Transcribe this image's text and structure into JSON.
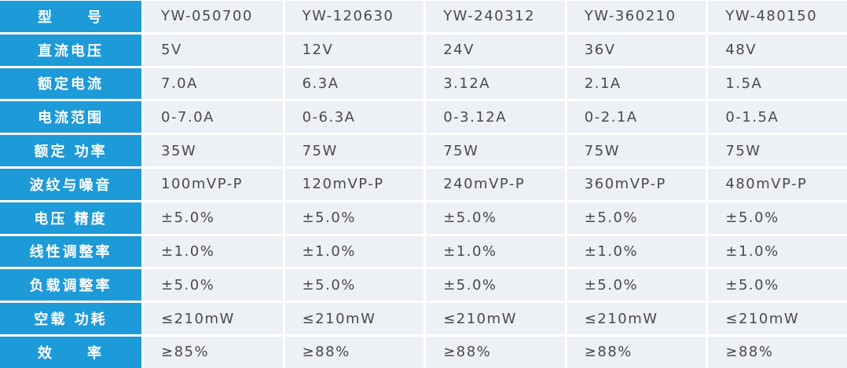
{
  "table": {
    "header": [
      "型　　号",
      "YW-050700",
      "YW-120630",
      "YW-240312",
      "YW-360210",
      "YW-480150"
    ],
    "rows": [
      [
        "直流电压",
        "5V",
        "12V",
        "24V",
        "36V",
        "48V"
      ],
      [
        "额定电流",
        "7.0A",
        "6.3A",
        "3.12A",
        "2.1A",
        "1.5A"
      ],
      [
        "电流范围",
        "0-7.0A",
        "0-6.3A",
        "0-3.12A",
        "0-2.1A",
        "0-1.5A"
      ],
      [
        "额定 功率",
        "35W",
        "75W",
        "75W",
        "75W",
        "75W"
      ],
      [
        "波纹与噪音",
        "100mVP-P",
        "120mVP-P",
        "240mVP-P",
        "360mVP-P",
        "480mVP-P"
      ],
      [
        "电压 精度",
        "±5.0%",
        "±5.0%",
        "±5.0%",
        "±5.0%",
        "±5.0%"
      ],
      [
        "线性调整率",
        "±1.0%",
        "±1.0%",
        "±1.0%",
        "±1.0%",
        "±1.0%"
      ],
      [
        "负载调整率",
        "±5.0%",
        "±5.0%",
        "±5.0%",
        "±5.0%",
        "±5.0%"
      ],
      [
        "空载 功耗",
        "≤210mW",
        "≤210mW",
        "≤210mW",
        "≤210mW",
        "≤210mW"
      ],
      [
        "效　　率",
        "≥85%",
        "≥88%",
        "≥88%",
        "≥88%",
        "≥88%"
      ]
    ]
  }
}
